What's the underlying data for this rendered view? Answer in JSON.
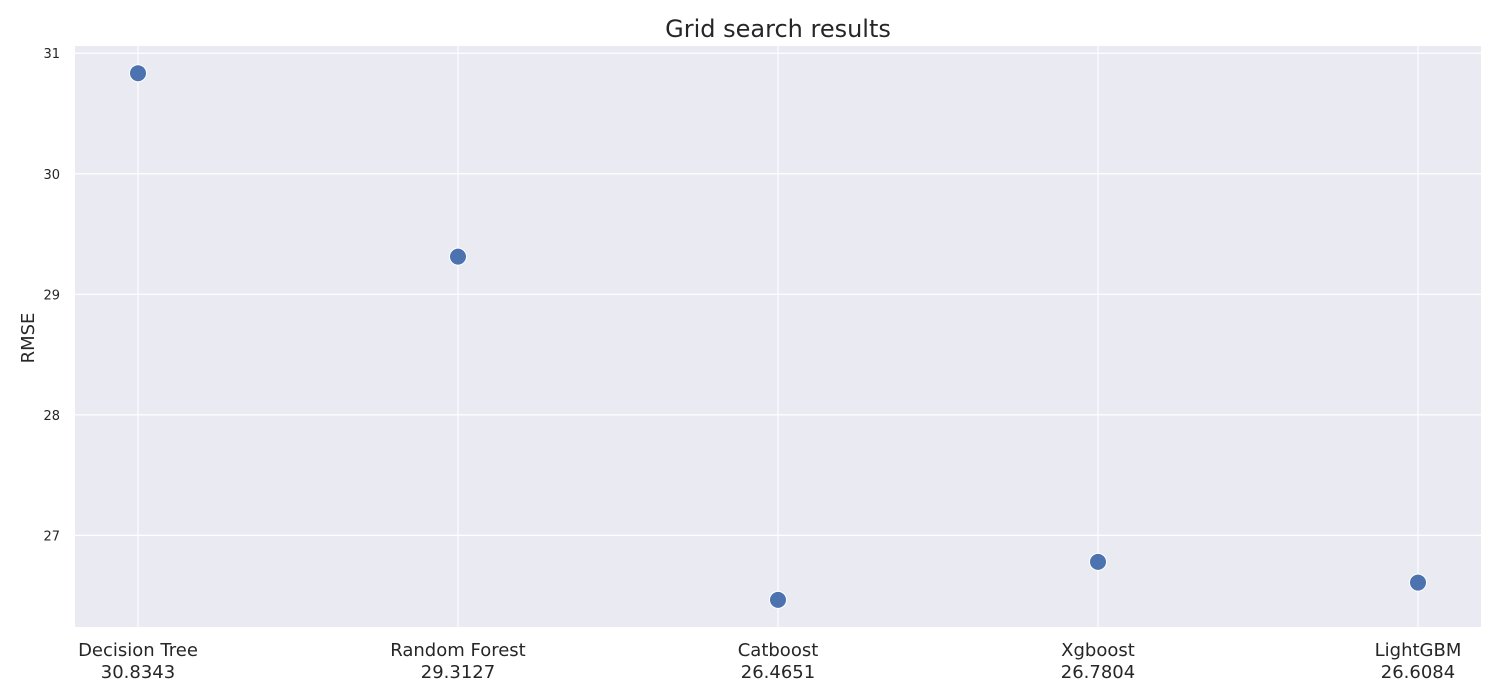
{
  "colors": {
    "plot_background": "#EAEAF2",
    "grid": "#FFFFFF",
    "marker": "#4C72B0",
    "text": "#262626"
  },
  "chart_data": {
    "type": "scatter",
    "title": "Grid search results",
    "xlabel": "",
    "ylabel": "RMSE",
    "categories": [
      "Decision Tree",
      "Random Forest",
      "Catboost",
      "Xgboost",
      "LightGBM"
    ],
    "value_labels": [
      "30.8343",
      "29.3127",
      "26.4651",
      "26.7804",
      "26.6084"
    ],
    "values": [
      30.8343,
      29.3127,
      26.4651,
      26.7804,
      26.6084
    ],
    "yticks": [
      27,
      28,
      29,
      30,
      31
    ],
    "ylim": [
      26.24,
      31.06
    ],
    "grid": true,
    "legend": "none"
  }
}
